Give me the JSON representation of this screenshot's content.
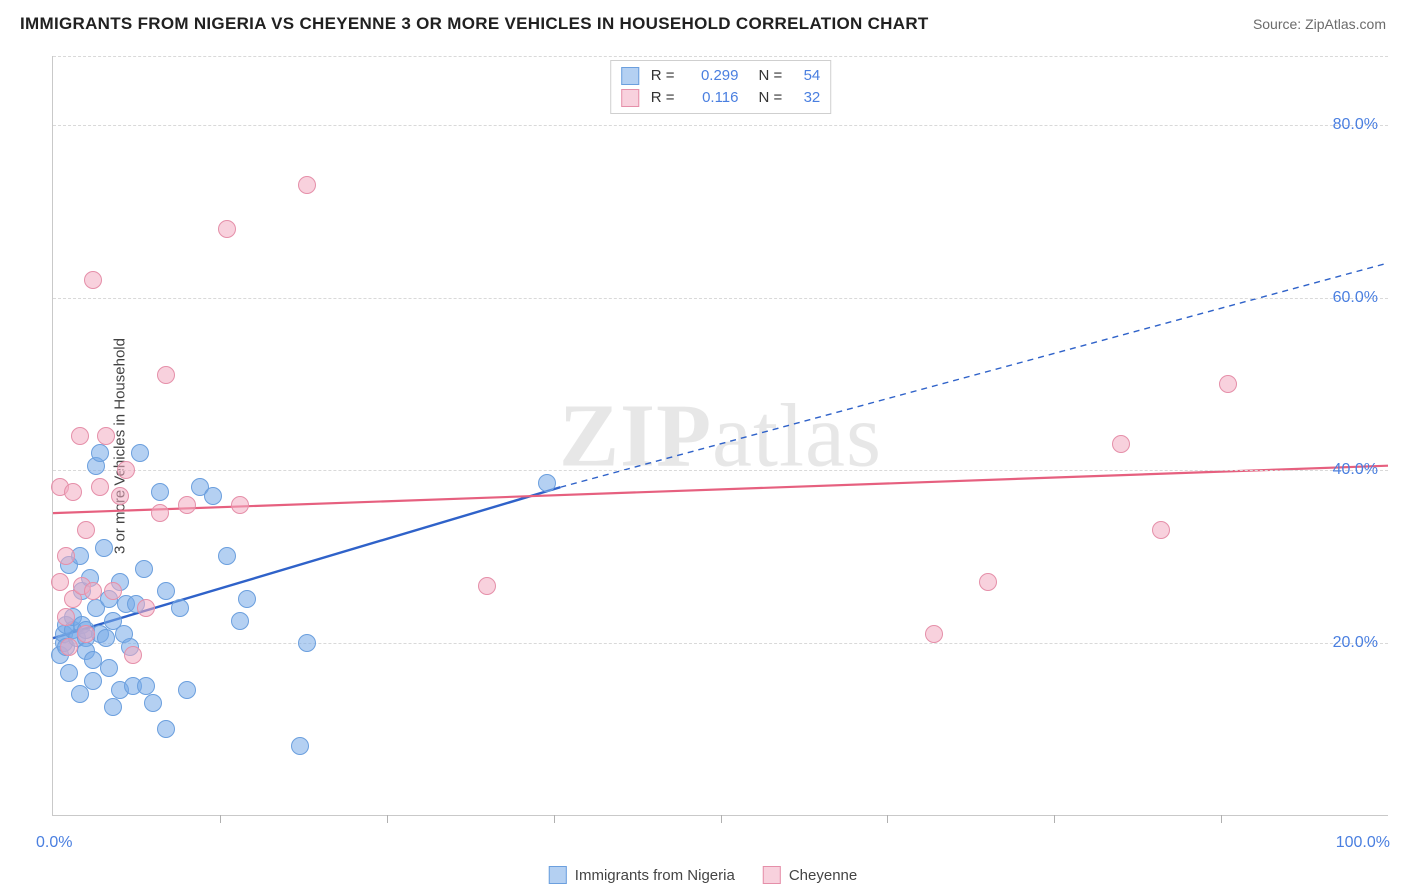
{
  "title": "IMMIGRANTS FROM NIGERIA VS CHEYENNE 3 OR MORE VEHICLES IN HOUSEHOLD CORRELATION CHART",
  "source": "Source: ZipAtlas.com",
  "ylabel": "3 or more Vehicles in Household",
  "watermark_a": "ZIP",
  "watermark_b": "atlas",
  "chart": {
    "type": "scatter",
    "xlim": [
      0,
      100
    ],
    "ylim": [
      0,
      88
    ],
    "x_ticks_major": [
      0,
      100
    ],
    "x_ticks_minor": [
      12.5,
      25,
      37.5,
      50,
      62.5,
      75,
      87.5
    ],
    "y_ticks": [
      20,
      40,
      60,
      80
    ],
    "x_tick_labels": {
      "0": "0.0%",
      "100": "100.0%"
    },
    "y_tick_labels": {
      "20": "20.0%",
      "40": "40.0%",
      "60": "60.0%",
      "80": "80.0%"
    },
    "axis_label_color": "#4a7fe0",
    "grid_color": "#d9d9d9",
    "background_color": "#ffffff",
    "marker_radius": 9,
    "marker_border": 1.5,
    "series": [
      {
        "name": "Immigrants from Nigeria",
        "fill": "rgba(118,169,231,0.55)",
        "stroke": "#6b9fde",
        "line_color": "#2f62c9",
        "line_width": 2.4,
        "r": 0.299,
        "n": 54,
        "trend_solid": {
          "x1": 0,
          "y1": 20.5,
          "x2": 38,
          "y2": 38
        },
        "trend_dash": {
          "x1": 38,
          "y1": 38,
          "x2": 100,
          "y2": 64
        },
        "points": [
          [
            0.5,
            18.5
          ],
          [
            0.8,
            20
          ],
          [
            0.8,
            21
          ],
          [
            1,
            22
          ],
          [
            1,
            19.5
          ],
          [
            1.2,
            29
          ],
          [
            1.2,
            16.5
          ],
          [
            1.5,
            21.5
          ],
          [
            1.5,
            23
          ],
          [
            1.8,
            20.5
          ],
          [
            2,
            14
          ],
          [
            2,
            30
          ],
          [
            2.2,
            26
          ],
          [
            2.2,
            22
          ],
          [
            2.5,
            20.5
          ],
          [
            2.5,
            21.5
          ],
          [
            2.5,
            19
          ],
          [
            2.8,
            27.5
          ],
          [
            3,
            18
          ],
          [
            3,
            15.5
          ],
          [
            3.2,
            24
          ],
          [
            3.2,
            40.5
          ],
          [
            3.5,
            42
          ],
          [
            3.5,
            21
          ],
          [
            3.8,
            31
          ],
          [
            4,
            20.5
          ],
          [
            4.2,
            25
          ],
          [
            4.2,
            17
          ],
          [
            4.5,
            22.5
          ],
          [
            4.5,
            12.5
          ],
          [
            5,
            14.5
          ],
          [
            5,
            27
          ],
          [
            5.3,
            21
          ],
          [
            5.5,
            24.5
          ],
          [
            5.8,
            19.5
          ],
          [
            6,
            15
          ],
          [
            6.2,
            24.5
          ],
          [
            6.5,
            42
          ],
          [
            6.8,
            28.5
          ],
          [
            7,
            15
          ],
          [
            7.5,
            13
          ],
          [
            8,
            37.5
          ],
          [
            8.5,
            26
          ],
          [
            8.5,
            10
          ],
          [
            9.5,
            24
          ],
          [
            10,
            14.5
          ],
          [
            11,
            38
          ],
          [
            12,
            37
          ],
          [
            13,
            30
          ],
          [
            14,
            22.5
          ],
          [
            14.5,
            25
          ],
          [
            18.5,
            8
          ],
          [
            19,
            20
          ],
          [
            37,
            38.5
          ]
        ]
      },
      {
        "name": "Cheyenne",
        "fill": "rgba(243,172,193,0.55)",
        "stroke": "#e58fa9",
        "line_color": "#e6607f",
        "line_width": 2.2,
        "r": 0.116,
        "n": 32,
        "trend_solid": {
          "x1": 0,
          "y1": 35,
          "x2": 100,
          "y2": 40.5
        },
        "points": [
          [
            0.5,
            38
          ],
          [
            0.5,
            27
          ],
          [
            1,
            23
          ],
          [
            1,
            30
          ],
          [
            1.2,
            19.5
          ],
          [
            1.5,
            25
          ],
          [
            1.5,
            37.5
          ],
          [
            2,
            44
          ],
          [
            2.2,
            26.5
          ],
          [
            2.5,
            21
          ],
          [
            2.5,
            33
          ],
          [
            3,
            26
          ],
          [
            3,
            62
          ],
          [
            3.5,
            38
          ],
          [
            4,
            44
          ],
          [
            4.5,
            26
          ],
          [
            5,
            37
          ],
          [
            5.5,
            40
          ],
          [
            6,
            18.5
          ],
          [
            7,
            24
          ],
          [
            8,
            35
          ],
          [
            8.5,
            51
          ],
          [
            10,
            36
          ],
          [
            13,
            68
          ],
          [
            14,
            36
          ],
          [
            19,
            73
          ],
          [
            32.5,
            26.5
          ],
          [
            66,
            21
          ],
          [
            70,
            27
          ],
          [
            80,
            43
          ],
          [
            83,
            33
          ],
          [
            88,
            50
          ]
        ]
      }
    ]
  },
  "legend_bottom": [
    "Immigrants from Nigeria",
    "Cheyenne"
  ]
}
